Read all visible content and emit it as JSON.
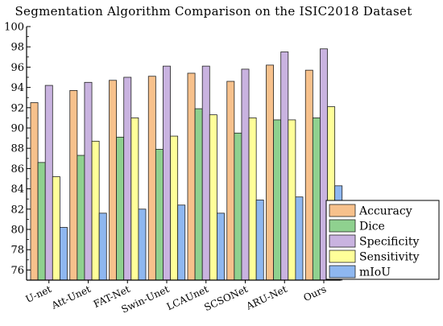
{
  "chart_data": {
    "type": "bar",
    "title": "Segmentation Algorithm Comparison on the ISIC2018 Dataset",
    "xlabel": "",
    "ylabel": "",
    "ylim": [
      75,
      100
    ],
    "y_ticks": [
      "76",
      "78",
      "80",
      "82",
      "84",
      "86",
      "88",
      "90",
      "92",
      "94",
      "96",
      "98",
      "100"
    ],
    "categories": [
      "U-net",
      "Att-Unet",
      "FAT-Net",
      "Swin-Unet",
      "LCAUnet",
      "SCSONet",
      "ARU-Net",
      "Ours"
    ],
    "series": [
      {
        "name": "Accuracy",
        "color": "#f7c18c",
        "values": [
          92.5,
          93.7,
          94.7,
          95.1,
          95.4,
          94.6,
          96.2,
          95.7
        ]
      },
      {
        "name": "Dice",
        "color": "#8fd18f",
        "values": [
          86.6,
          87.3,
          89.1,
          87.9,
          91.9,
          89.5,
          90.8,
          91.0
        ]
      },
      {
        "name": "Specificity",
        "color": "#c9b3e0",
        "values": [
          94.2,
          94.5,
          95.0,
          96.1,
          96.1,
          95.8,
          97.5,
          97.8
        ]
      },
      {
        "name": "Sensitivity",
        "color": "#ffff99",
        "values": [
          85.2,
          88.7,
          91.0,
          89.2,
          91.3,
          91.0,
          90.8,
          92.1
        ]
      },
      {
        "name": "mIoU",
        "color": "#8eb7f0",
        "values": [
          80.2,
          81.6,
          82.0,
          82.4,
          81.6,
          82.9,
          83.2,
          84.3
        ]
      }
    ],
    "legend_position": "bottom-right",
    "grid": false
  }
}
